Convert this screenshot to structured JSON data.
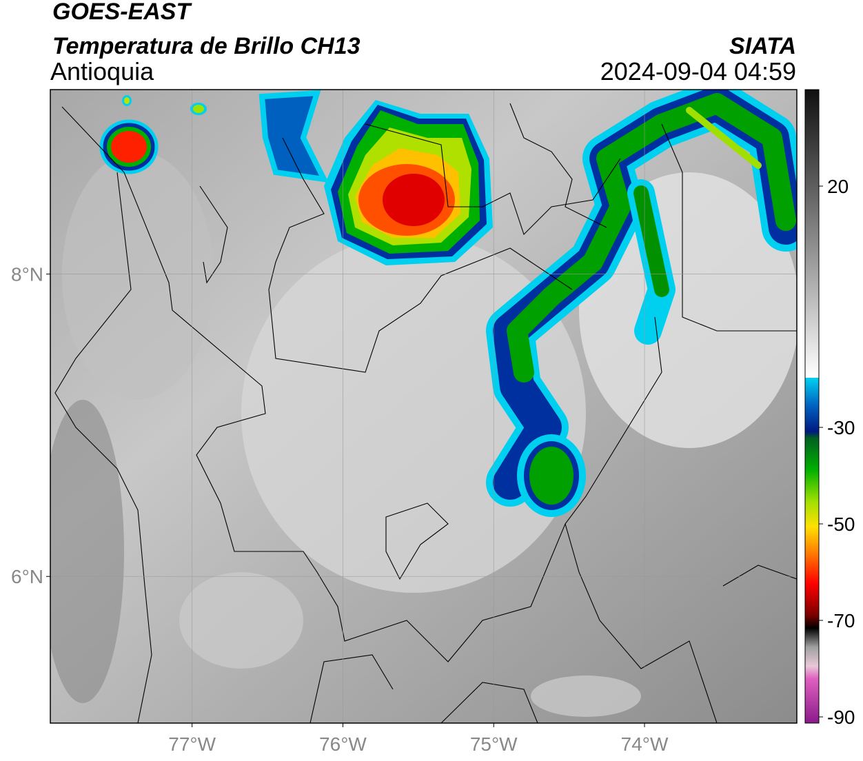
{
  "header": {
    "title": "GOES-EAST",
    "subtitle": "Temperatura de Brillo CH13",
    "region": "Antioquia",
    "source": "SIATA",
    "timestamp": "2024-09-04 04:59"
  },
  "map": {
    "xlim": [
      -77.94,
      -72.99
    ],
    "ylim": [
      5.03,
      9.22
    ],
    "xticks": [
      {
        "value": -77,
        "label": "77°W"
      },
      {
        "value": -76,
        "label": "76°W"
      },
      {
        "value": -75,
        "label": "75°W"
      },
      {
        "value": -74,
        "label": "74°W"
      }
    ],
    "yticks": [
      {
        "value": 8,
        "label": "8°N"
      },
      {
        "value": 6,
        "label": "6°N"
      }
    ]
  },
  "colorbar": {
    "lim": [
      -90,
      40
    ],
    "ticks": [
      20,
      -30,
      -50,
      -70,
      -90
    ]
  }
}
